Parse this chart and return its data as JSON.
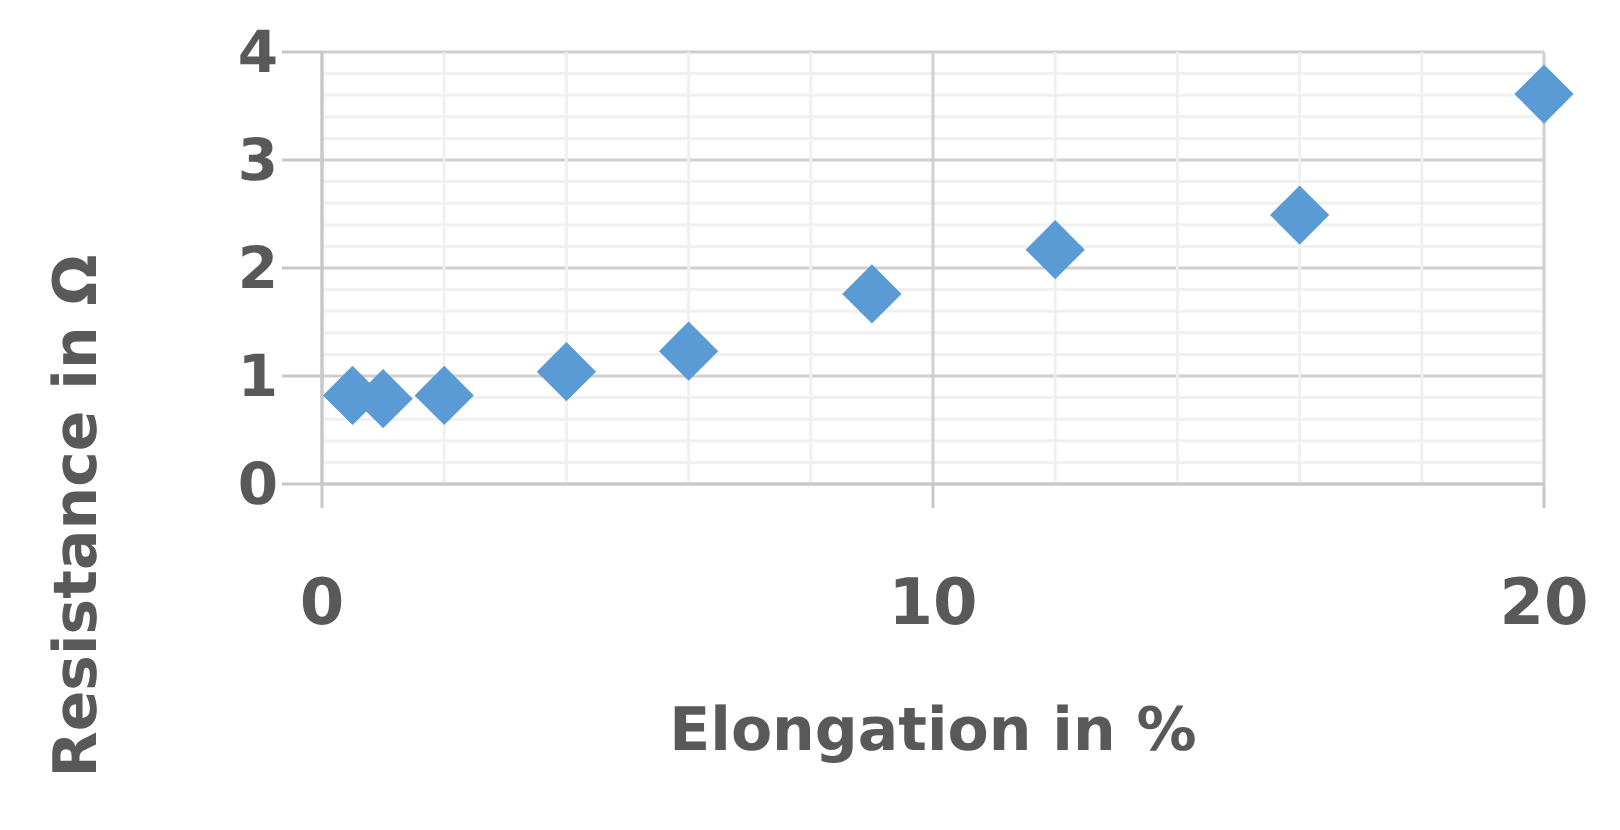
{
  "chart_data": {
    "type": "scatter",
    "xlabel": "Elongation in %",
    "ylabel": "Resistance in Ω",
    "x": [
      0.5,
      1,
      2,
      4,
      6,
      9,
      12,
      16,
      20
    ],
    "series": [
      {
        "color": "#5b9bd5",
        "values": [
          0.82,
          0.79,
          0.82,
          1.04,
          1.23,
          1.76,
          2.17,
          2.49,
          3.61
        ]
      }
    ],
    "xlim": [
      0,
      20
    ],
    "xticks": [
      0,
      {
        "value": 2,
        "label": null
      },
      {
        "value": 4,
        "label": null
      },
      {
        "value": 6,
        "label": null
      },
      {
        "value": 8,
        "label": null
      },
      10,
      {
        "value": 12,
        "label": null
      },
      {
        "value": 14,
        "label": null
      },
      {
        "value": 16,
        "label": null
      },
      {
        "value": 18,
        "label": null
      },
      20
    ],
    "ylim": [
      0,
      4
    ],
    "yticks": [
      0,
      {
        "value": 0.2,
        "label": null
      },
      {
        "value": 0.4,
        "label": null
      },
      {
        "value": 0.6,
        "label": null
      },
      {
        "value": 0.8,
        "label": null
      },
      1,
      {
        "value": 1.2,
        "label": null
      },
      {
        "value": 1.4,
        "label": null
      },
      {
        "value": 1.6,
        "label": null
      },
      {
        "value": 1.8,
        "label": null
      },
      2,
      {
        "value": 2.2,
        "label": null
      },
      {
        "value": 2.4,
        "label": null
      },
      {
        "value": 2.6,
        "label": null
      },
      {
        "value": 2.8,
        "label": null
      },
      3,
      {
        "value": 3.2,
        "label": null
      },
      {
        "value": 3.4,
        "label": null
      },
      {
        "value": 3.6,
        "label": null
      },
      {
        "value": 3.8,
        "label": null
      },
      4
    ],
    "grid": true,
    "marker": "diamond"
  }
}
